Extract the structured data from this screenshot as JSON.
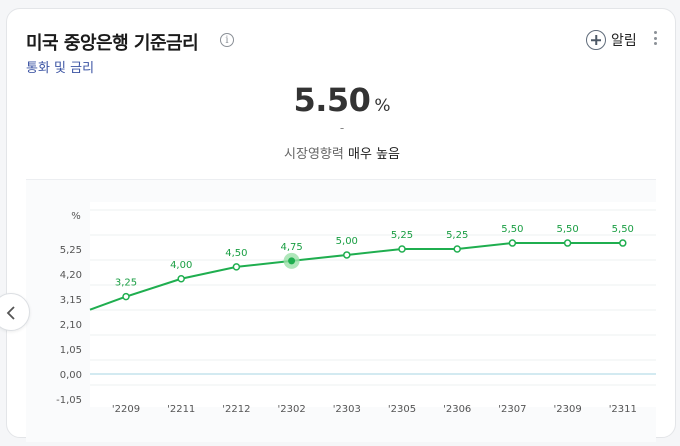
{
  "card": {
    "title": "미국 중앙은행 기준금리",
    "info_icon": "info-icon",
    "category": "통화 및 금리",
    "alert_label": "알림",
    "value": "5.50",
    "unit": "%",
    "change": "-",
    "influence_label": "시장영향력",
    "influence_level": "매우 높음"
  },
  "colors": {
    "line": "#1fae4f",
    "label": "#1a9e43",
    "accent_link": "#3c54a3"
  },
  "chart_data": {
    "type": "line",
    "y_unit_label": "%",
    "y_ticks": [
      "5,25",
      "4,20",
      "3,15",
      "2,10",
      "1,05",
      "0,00",
      "-1,05"
    ],
    "ylim": [
      -1.05,
      6.3
    ],
    "x_ticks": [
      "'2209",
      "'2211",
      "'2212",
      "'2302",
      "'2303",
      "'2305",
      "'2306",
      "'2307",
      "'2309",
      "'2311"
    ],
    "series": [
      {
        "values": [
          3.25,
          4.0,
          4.5,
          4.75,
          5.0,
          5.25,
          5.25,
          5.5,
          5.5,
          5.5
        ],
        "labels": [
          "3,25",
          "4,00",
          "4,50",
          "4,75",
          "5,00",
          "5,25",
          "5,25",
          "5,50",
          "5,50",
          "5,50"
        ],
        "highlight_index": 3
      }
    ],
    "leading_value": 2.7,
    "grid": true
  }
}
